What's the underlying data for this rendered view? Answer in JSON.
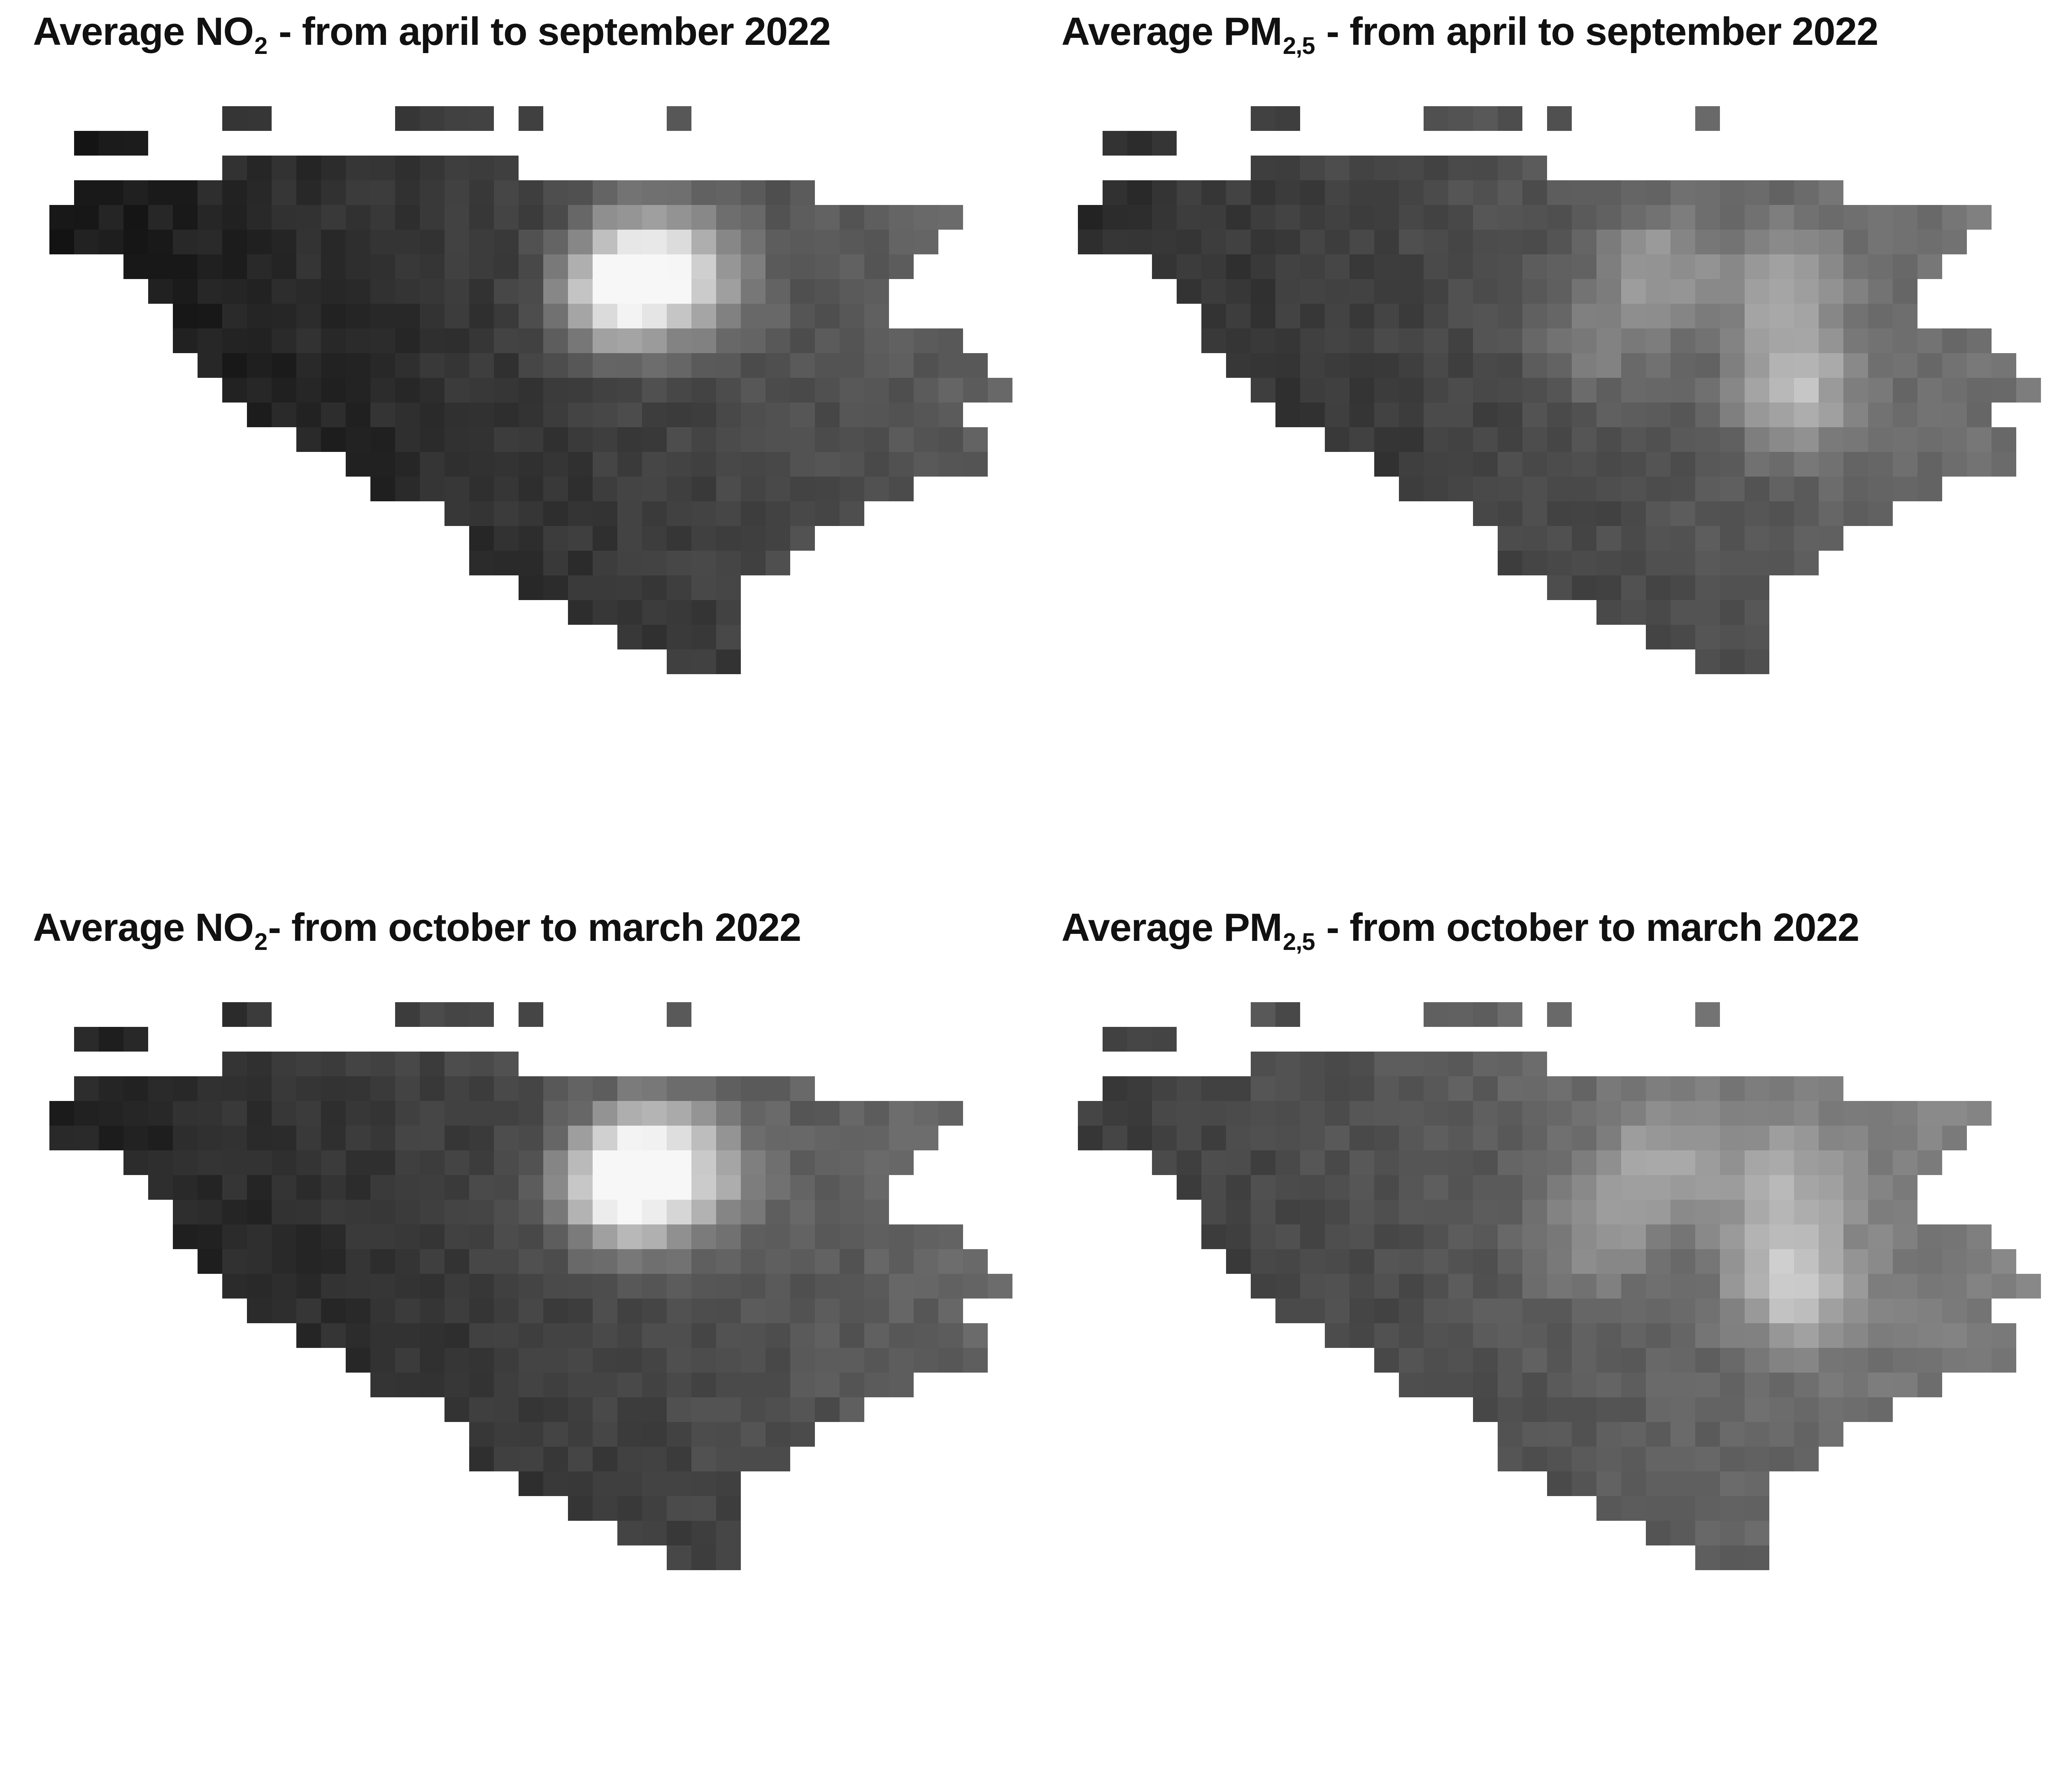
{
  "panels": [
    {
      "title_pre": "Average NO",
      "title_sub": "2",
      "title_post": " - from april to september 2022",
      "variant": 0
    },
    {
      "title_pre": "Average PM",
      "title_sub": "2,5",
      "title_post": " - from april to september 2022",
      "variant": 1
    },
    {
      "title_pre": "Average NO",
      "title_sub": "2",
      "title_post": "- from october to march 2022",
      "variant": 2
    },
    {
      "title_pre": "Average PM",
      "title_sub": "2,5",
      "title_post": " - from october to march 2022",
      "variant": 3
    }
  ],
  "colors": {
    "background": "#ffffff",
    "title": "#111111",
    "low": "#0a0a0a",
    "high": "#f5f5f5"
  }
}
